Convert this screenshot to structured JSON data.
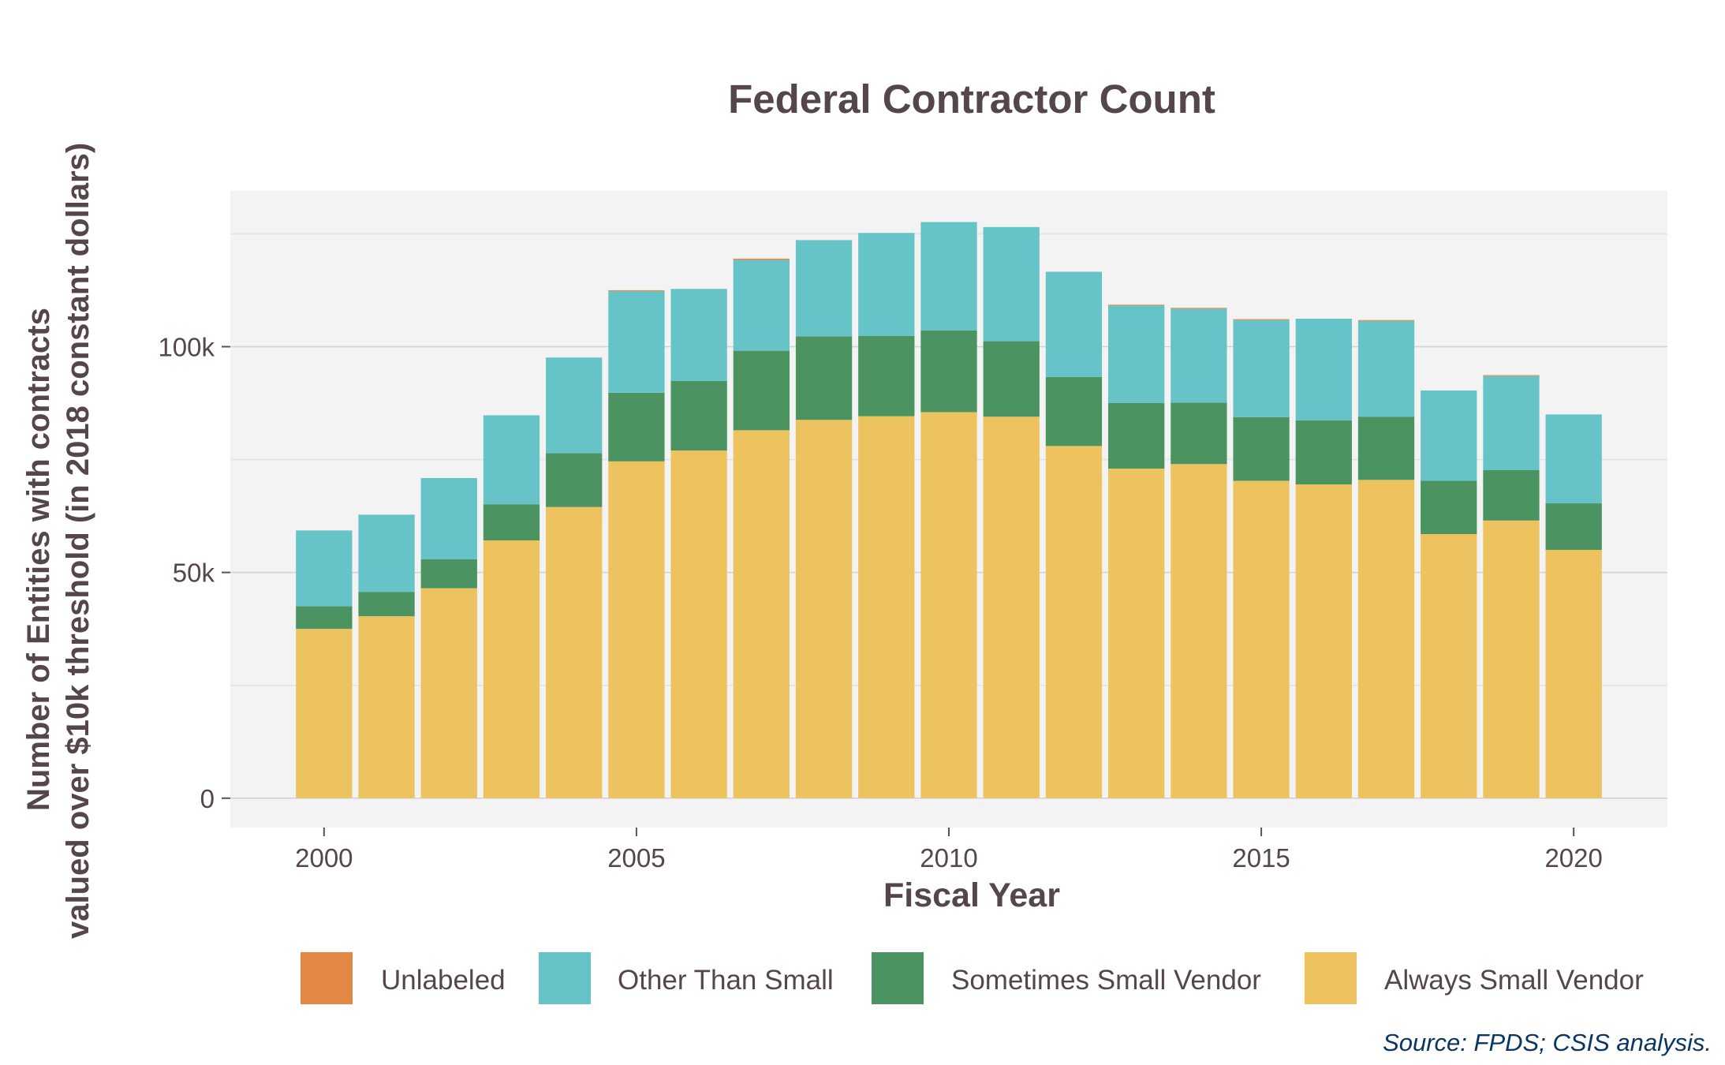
{
  "chart_data": {
    "type": "bar",
    "stacked": true,
    "title": "Federal Contractor Count",
    "xlabel": "Fiscal Year",
    "ylabel_lines": [
      "Number of Entities with contracts",
      "valued over $10k threshold (in 2018 constant dollars)"
    ],
    "source": "Source: FPDS; CSIS analysis.",
    "x": [
      2000,
      2001,
      2002,
      2003,
      2004,
      2005,
      2006,
      2007,
      2008,
      2009,
      2010,
      2011,
      2012,
      2013,
      2014,
      2015,
      2016,
      2017,
      2018,
      2019,
      2020
    ],
    "xlim": [
      1998.5,
      2021.5
    ],
    "ylim": [
      -6500,
      134500
    ],
    "x_ticks": [
      2000,
      2005,
      2010,
      2015,
      2020
    ],
    "x_tick_labels": [
      "2000",
      "2005",
      "2010",
      "2015",
      "2020"
    ],
    "y_ticks": [
      0,
      50000,
      100000
    ],
    "y_tick_labels": [
      "0",
      "50k",
      "100k"
    ],
    "y_minor_gridlines": [
      25000,
      75000,
      125000
    ],
    "grid": true,
    "legend_position": "bottom",
    "series": [
      {
        "name": "Always Small Vendor",
        "color": "#ecc35f",
        "values": [
          37500,
          40300,
          46500,
          57100,
          64500,
          74600,
          77000,
          81500,
          83800,
          84600,
          85500,
          84500,
          78000,
          73000,
          74000,
          70300,
          69500,
          70500,
          58500,
          61500,
          55000
        ]
      },
      {
        "name": "Sometimes Small Vendor",
        "color": "#4b9361",
        "values": [
          5000,
          5400,
          6400,
          8000,
          11900,
          15200,
          15400,
          17600,
          18500,
          17800,
          18100,
          16700,
          15300,
          14500,
          13600,
          14100,
          14200,
          14000,
          11800,
          11200,
          10300
        ]
      },
      {
        "name": "Other Than Small",
        "color": "#66c4c9",
        "values": [
          16800,
          17100,
          18000,
          19700,
          21200,
          22500,
          20400,
          20100,
          21300,
          22800,
          24000,
          25300,
          23300,
          21600,
          20800,
          21500,
          22500,
          21200,
          20000,
          20800,
          19700
        ]
      },
      {
        "name": "Unlabeled",
        "color": "#e28844",
        "values": [
          0,
          0,
          0,
          0,
          0,
          200,
          0,
          300,
          0,
          0,
          0,
          0,
          0,
          200,
          200,
          200,
          0,
          200,
          0,
          200,
          0
        ]
      }
    ],
    "legend_order": [
      "Unlabeled",
      "Other Than Small",
      "Sometimes Small Vendor",
      "Always Small Vendor"
    ]
  }
}
